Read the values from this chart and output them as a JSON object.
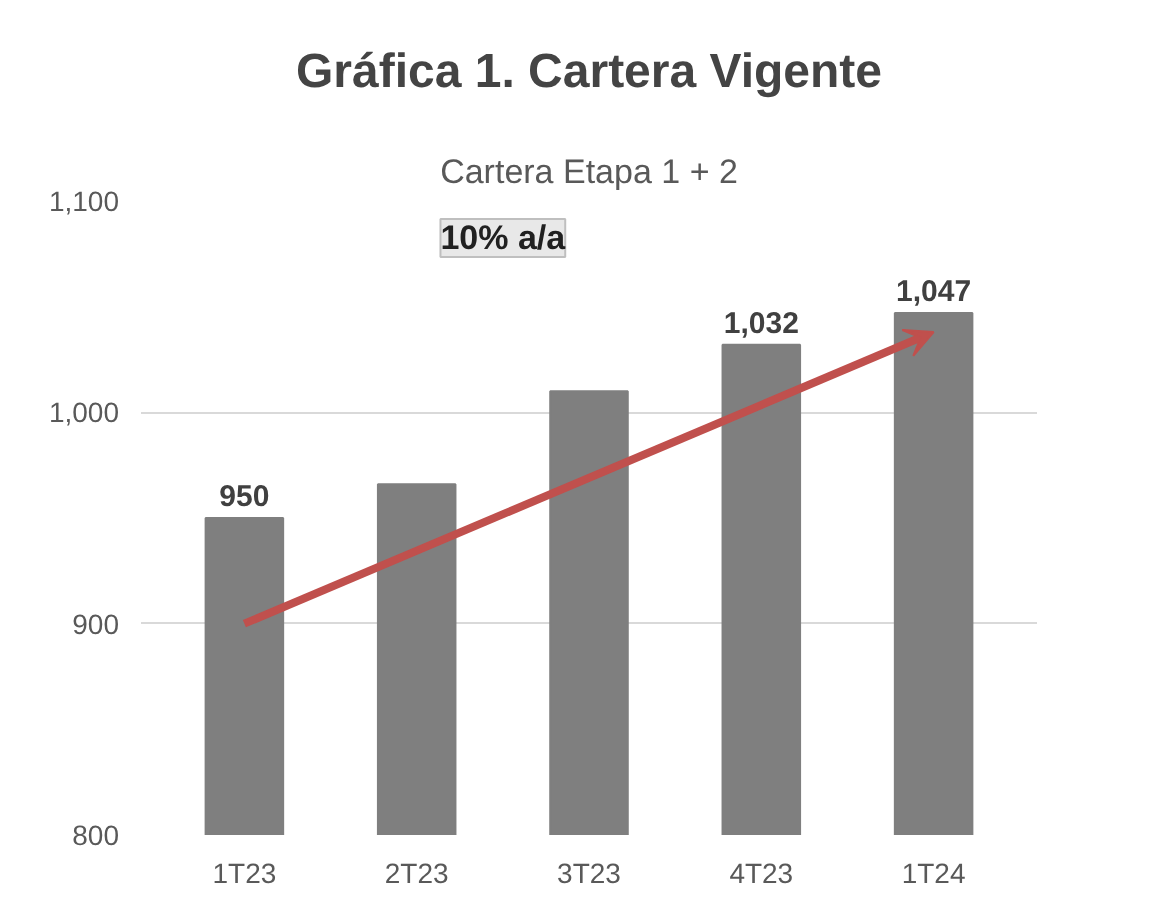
{
  "chart_data": {
    "type": "bar",
    "title": "Gráfica 1. Cartera Vigente",
    "subtitle": "Cartera Etapa 1 + 2",
    "categories": [
      "1T23",
      "2T23",
      "3T23",
      "4T23",
      "1T24"
    ],
    "values": [
      950,
      966,
      1010,
      1032,
      1047
    ],
    "value_labels": [
      "950",
      null,
      null,
      "1,032",
      "1,047"
    ],
    "color": "#7f7f7f",
    "ylim": [
      800,
      1100
    ],
    "yticks": [
      {
        "value": 800,
        "label": "800"
      },
      {
        "value": 900,
        "label": "900"
      },
      {
        "value": 1000,
        "label": "1,000"
      },
      {
        "value": 1100,
        "label": "1,100"
      }
    ],
    "grid": "y",
    "annotations": [
      "10% a/a"
    ]
  }
}
